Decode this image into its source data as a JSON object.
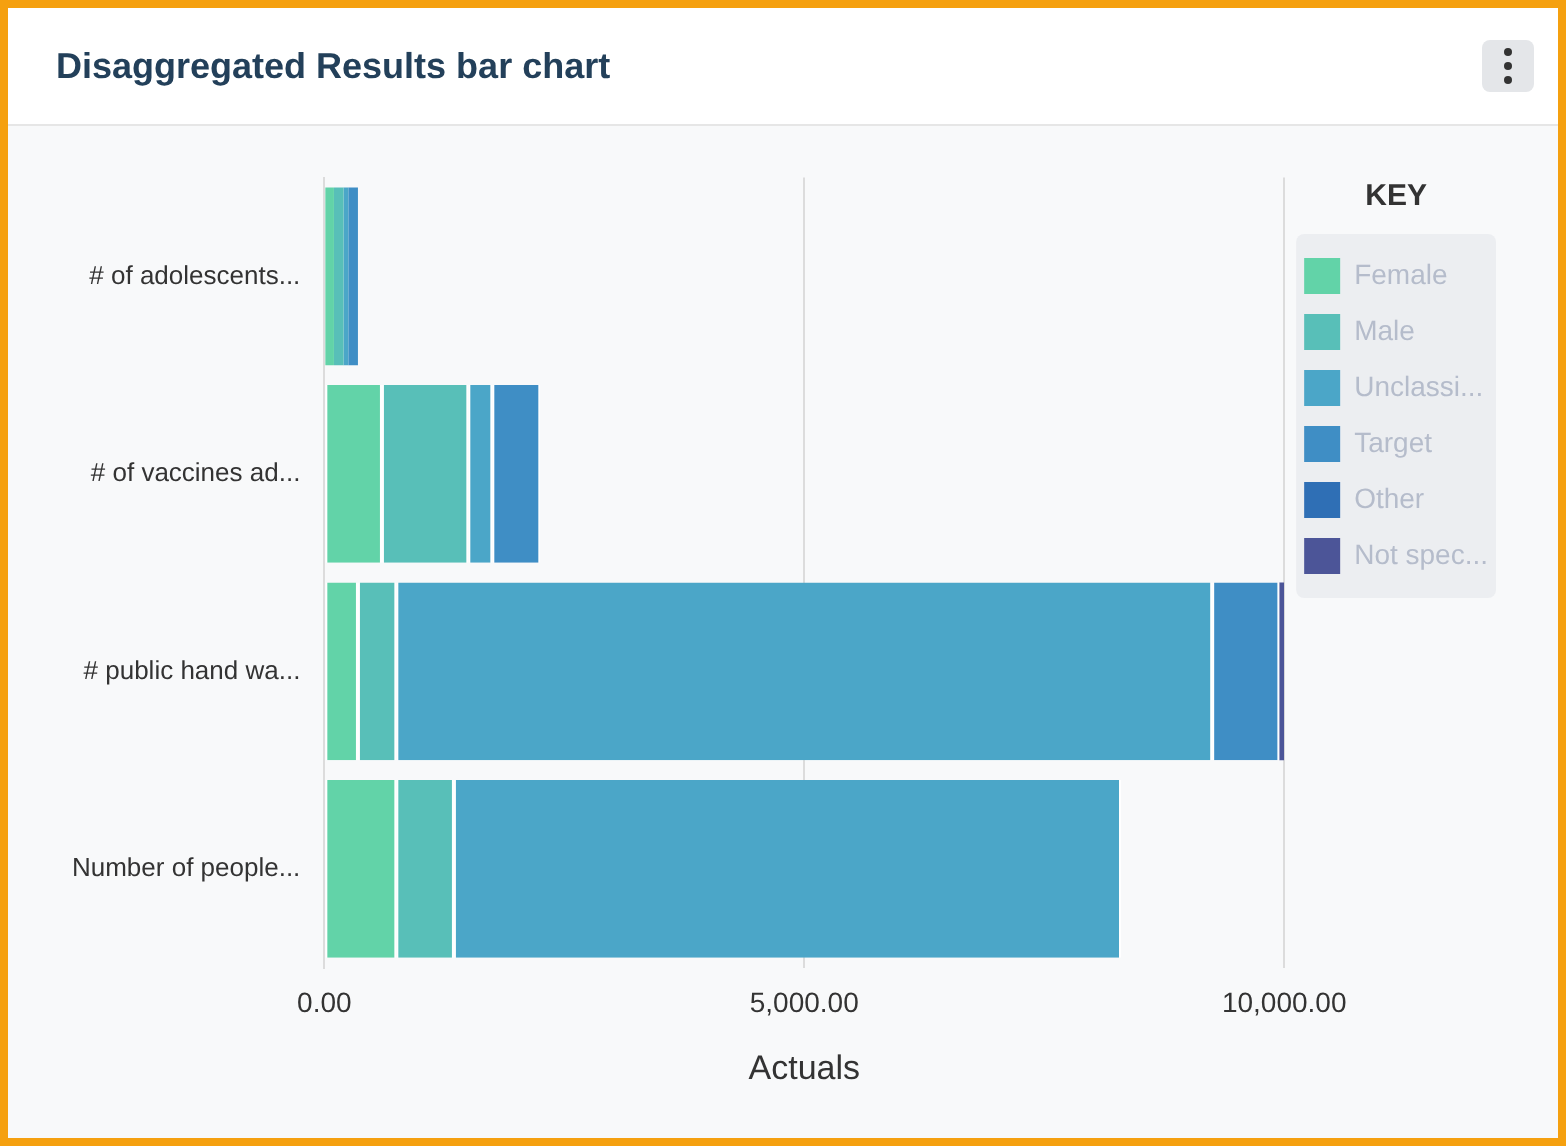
{
  "chart_data": {
    "type": "bar",
    "title": "Disaggregated Results bar chart",
    "orientation": "horizontal",
    "stacked": true,
    "xlabel": "Actuals",
    "legend_title": "KEY",
    "legend": "right",
    "categories": [
      "# of adolescents...",
      "# of vaccines ad...",
      "# public hand wa...",
      "Number of people..."
    ],
    "series": [
      {
        "name": "Female",
        "color": "#62d3a8",
        "values": [
          100,
          600,
          350,
          750
        ]
      },
      {
        "name": "Male",
        "color": "#58bfb8",
        "values": [
          100,
          900,
          400,
          600
        ]
      },
      {
        "name": "Unclassi...",
        "color": "#4ba6c8",
        "values": [
          50,
          250,
          8500,
          6950
        ]
      },
      {
        "name": "Target",
        "color": "#3f8ec5",
        "values": [
          100,
          500,
          700,
          null
        ]
      },
      {
        "name": "Other",
        "color": "#2f6fb5",
        "values": [
          null,
          null,
          null,
          null
        ]
      },
      {
        "name": "Not spec...",
        "color": "#4c5598",
        "values": [
          null,
          null,
          50,
          null
        ]
      }
    ],
    "xlim": [
      0,
      10000
    ],
    "xticks": [
      {
        "value": 0,
        "label": "0.00"
      },
      {
        "value": 5000,
        "label": "5,000.00"
      },
      {
        "value": 10000,
        "label": "10,000.00"
      }
    ],
    "grid": "x"
  }
}
